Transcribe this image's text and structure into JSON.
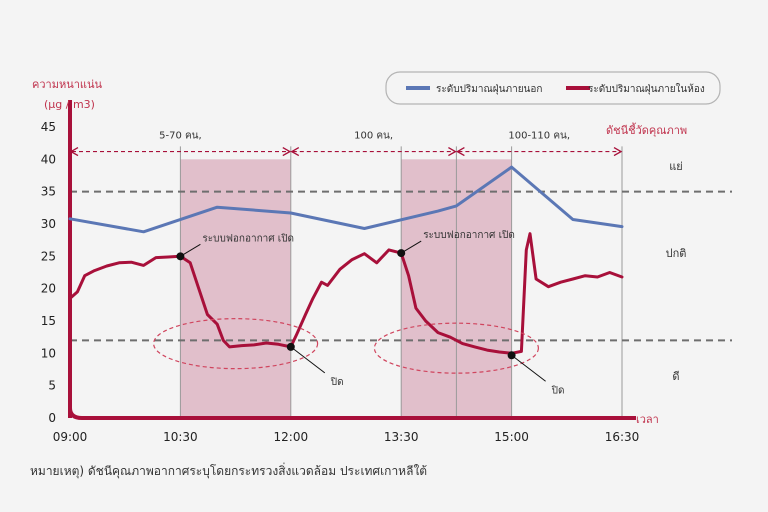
{
  "chart_data": {
    "type": "line",
    "ylabel": "ความหนาแน่น",
    "yunit": "(μg / m3)",
    "xlabel": "เวลา",
    "ylim": [
      0,
      45
    ],
    "yticks": [
      "0",
      "5",
      "10",
      "15",
      "20",
      "25",
      "30",
      "35",
      "40",
      "45"
    ],
    "xticks": [
      "09:00",
      "10:30",
      "12:00",
      "13:30",
      "15:00",
      "16:30"
    ],
    "thresholds": [
      {
        "value": 35,
        "color": "#6e6e6e",
        "style": "dashed"
      },
      {
        "value": 12,
        "color": "#6e6e6e",
        "style": "dashed"
      }
    ],
    "quality_title": "ดัชนีชี้วัดคุณภาพ",
    "quality_zones": [
      {
        "label": "แย่",
        "y": 39
      },
      {
        "label": "ปกติ",
        "y": 25.5
      },
      {
        "label": "ดี",
        "y": 6.5
      }
    ],
    "occupancy": [
      {
        "label": "5-70 คน,",
        "x_from": "09:00",
        "x_to": "12:00"
      },
      {
        "label": "100 คน,",
        "x_from": "12:00",
        "x_to": "14:15"
      },
      {
        "label": "100-110 คน,",
        "x_from": "14:15",
        "x_to": "16:30"
      }
    ],
    "shaded_periods": [
      {
        "from": "10:30",
        "to": "12:00"
      },
      {
        "from": "13:30",
        "to": "15:00"
      }
    ],
    "period_divider": "14:15",
    "annotations": [
      {
        "text": "ระบบฟอกอากาศ เปิด",
        "x": "10:30",
        "y": 25
      },
      {
        "text": "ระบบฟอกอากาศ เปิด",
        "x": "13:30",
        "y": 25.5
      },
      {
        "text": "ปิด",
        "x": "12:00",
        "y": 11
      },
      {
        "text": "ปิด",
        "x": "15:00",
        "y": 9.7
      }
    ],
    "series": [
      {
        "name": "ระดับปริมาณฝุ่นภายนอก",
        "color": "#5b77b5",
        "points": [
          [
            "09:00",
            30.8
          ],
          [
            "10:00",
            28.8
          ],
          [
            "11:00",
            32.6
          ],
          [
            "12:00",
            31.7
          ],
          [
            "13:00",
            29.3
          ],
          [
            "14:00",
            32
          ],
          [
            "14:15",
            32.8
          ],
          [
            "15:00",
            38.8
          ],
          [
            "15:50",
            30.7
          ],
          [
            "16:30",
            29.6
          ]
        ]
      },
      {
        "name": "ระดับปริมาณฝุ่นภายในห้อง",
        "color": "#a8103a",
        "points": [
          [
            "09:00",
            0.5
          ],
          [
            "09:00",
            18.5
          ],
          [
            "09:06",
            19.5
          ],
          [
            "09:12",
            22
          ],
          [
            "09:20",
            22.8
          ],
          [
            "09:30",
            23.5
          ],
          [
            "09:40",
            24
          ],
          [
            "09:50",
            24.1
          ],
          [
            "10:00",
            23.6
          ],
          [
            "10:10",
            24.8
          ],
          [
            "10:20",
            24.9
          ],
          [
            "10:30",
            25
          ],
          [
            "10:38",
            24
          ],
          [
            "10:45",
            20
          ],
          [
            "10:52",
            16
          ],
          [
            "11:00",
            14.5
          ],
          [
            "11:05",
            12
          ],
          [
            "11:10",
            11
          ],
          [
            "11:20",
            11.2
          ],
          [
            "11:30",
            11.3
          ],
          [
            "11:40",
            11.6
          ],
          [
            "11:50",
            11.4
          ],
          [
            "12:00",
            11
          ],
          [
            "12:05",
            13
          ],
          [
            "12:12",
            16
          ],
          [
            "12:18",
            18.5
          ],
          [
            "12:25",
            21
          ],
          [
            "12:30",
            20.5
          ],
          [
            "12:40",
            23
          ],
          [
            "12:50",
            24.5
          ],
          [
            "13:00",
            25.4
          ],
          [
            "13:10",
            24
          ],
          [
            "13:20",
            26
          ],
          [
            "13:30",
            25.5
          ],
          [
            "13:36",
            22
          ],
          [
            "13:42",
            17
          ],
          [
            "13:50",
            15
          ],
          [
            "14:00",
            13.2
          ],
          [
            "14:10",
            12.5
          ],
          [
            "14:20",
            11.5
          ],
          [
            "14:30",
            11
          ],
          [
            "14:40",
            10.5
          ],
          [
            "14:50",
            10.2
          ],
          [
            "15:00",
            10
          ],
          [
            "15:08",
            10.3
          ],
          [
            "15:12",
            26
          ],
          [
            "15:15",
            28.5
          ],
          [
            "15:20",
            21.5
          ],
          [
            "15:30",
            20.3
          ],
          [
            "15:40",
            21
          ],
          [
            "15:50",
            21.5
          ],
          [
            "16:00",
            22
          ],
          [
            "16:10",
            21.8
          ],
          [
            "16:20",
            22.5
          ],
          [
            "16:30",
            21.8
          ]
        ]
      }
    ]
  },
  "footnote": "หมายเหตุ) ดัชนีคุณภาพอากาศระบุโดยกระทรวงสิ่งแวดล้อม ประเทศเกาหลีใต้"
}
